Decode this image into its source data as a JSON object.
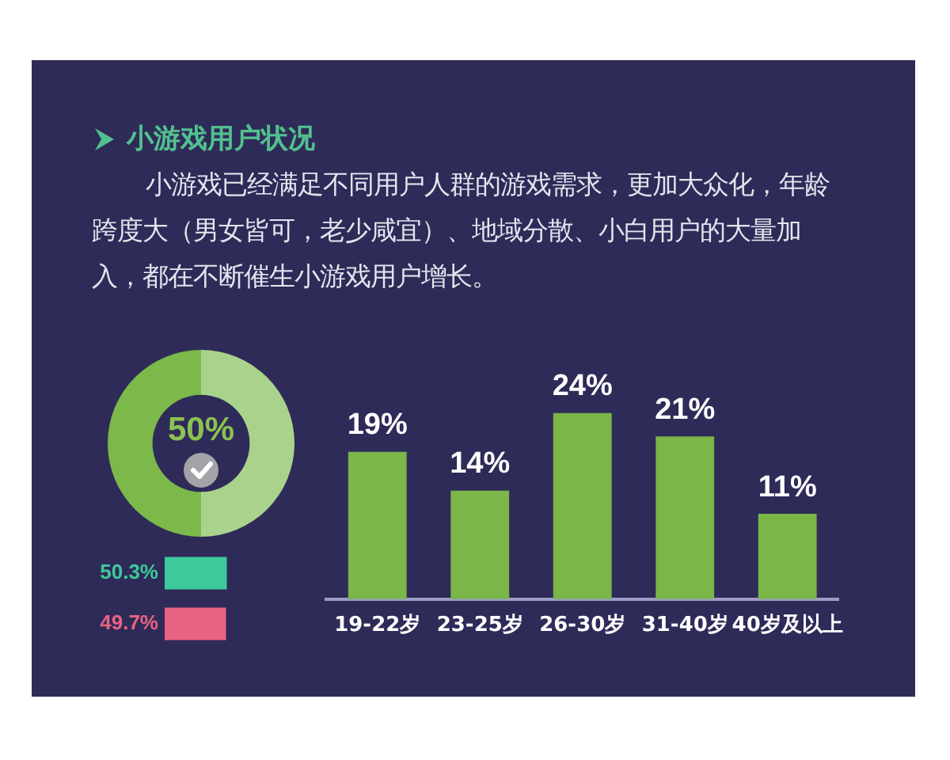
{
  "chart_data": [
    {
      "type": "donut",
      "title": "小游戏用户状况",
      "subtitle": "小游戏已经满足不同用户人群的游戏需求，更加大众化，年龄跨度大（男女皆可，老少咸宜）、地域分散、小白用户的大量加入，都在不断催生小游戏用户增长。",
      "categories": [
        null,
        null
      ],
      "values": [
        50,
        50
      ],
      "colors": [
        "#a9d38b",
        "#7cb84a"
      ],
      "annotations": [
        "50%"
      ]
    },
    {
      "type": "bar",
      "orientation": "horizontal",
      "categories": [
        null,
        null
      ],
      "values": [
        50.3,
        49.7
      ],
      "colors": [
        "#3ec99c",
        "#ea6282"
      ],
      "value_labels": [
        "50.3%",
        "49.7%"
      ],
      "tick_labels": false
    },
    {
      "type": "bar",
      "categories": [
        "19-22岁",
        "23-25岁",
        "26-30岁",
        "31-40岁",
        "40岁及以上"
      ],
      "values": [
        19,
        14,
        24,
        21,
        11
      ],
      "color": "#7ab648",
      "value_labels": [
        "19%",
        "14%",
        "24%",
        "21%",
        "11%"
      ],
      "tick_labels": "x"
    }
  ]
}
